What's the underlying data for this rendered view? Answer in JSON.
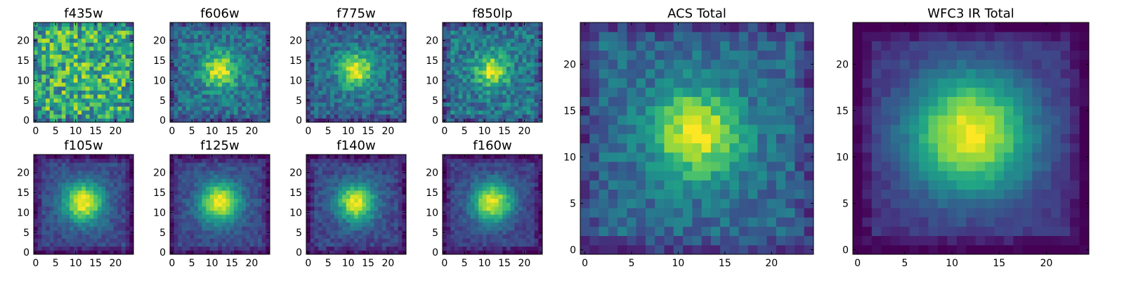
{
  "chart_data": {
    "type": "heatmap",
    "colormap": "viridis",
    "grid_size": 25,
    "axis_range": [
      0,
      24
    ],
    "panels": [
      {
        "title": "f435w",
        "xticks": [
          "0",
          "5",
          "10",
          "15",
          "20"
        ],
        "yticks": [
          "0",
          "5",
          "10",
          "15",
          "20"
        ],
        "peak": 0.05,
        "noise": 0.3,
        "base": 0.62,
        "sigma": 3.2,
        "seed": 11
      },
      {
        "title": "f606w",
        "xticks": [
          "0",
          "5",
          "10",
          "15",
          "20"
        ],
        "yticks": [
          "0",
          "5",
          "10",
          "15",
          "20"
        ],
        "peak": 0.6,
        "noise": 0.16,
        "base": 0.38,
        "sigma": 3.0,
        "seed": 23
      },
      {
        "title": "f775w",
        "xticks": [
          "0",
          "5",
          "10",
          "15",
          "20"
        ],
        "yticks": [
          "0",
          "5",
          "10",
          "15",
          "20"
        ],
        "peak": 0.62,
        "noise": 0.15,
        "base": 0.35,
        "sigma": 3.0,
        "seed": 37
      },
      {
        "title": "f850lp",
        "xticks": [
          "0",
          "5",
          "10",
          "15",
          "20"
        ],
        "yticks": [
          "0",
          "5",
          "10",
          "15",
          "20"
        ],
        "peak": 0.55,
        "noise": 0.18,
        "base": 0.4,
        "sigma": 2.8,
        "seed": 41
      },
      {
        "title": "f105w",
        "xticks": [
          "0",
          "5",
          "10",
          "15",
          "20"
        ],
        "yticks": [
          "0",
          "5",
          "10",
          "15",
          "20"
        ],
        "peak": 0.78,
        "noise": 0.08,
        "base": 0.22,
        "sigma": 3.6,
        "seed": 53
      },
      {
        "title": "f125w",
        "xticks": [
          "0",
          "5",
          "10",
          "15",
          "20"
        ],
        "yticks": [
          "0",
          "5",
          "10",
          "15",
          "20"
        ],
        "peak": 0.78,
        "noise": 0.08,
        "base": 0.22,
        "sigma": 3.6,
        "seed": 61
      },
      {
        "title": "f140w",
        "xticks": [
          "0",
          "5",
          "10",
          "15",
          "20"
        ],
        "yticks": [
          "0",
          "5",
          "10",
          "15",
          "20"
        ],
        "peak": 0.76,
        "noise": 0.09,
        "base": 0.22,
        "sigma": 3.4,
        "seed": 71
      },
      {
        "title": "f160w",
        "xticks": [
          "0",
          "5",
          "10",
          "15",
          "20"
        ],
        "yticks": [
          "0",
          "5",
          "10",
          "15",
          "20"
        ],
        "peak": 0.78,
        "noise": 0.08,
        "base": 0.2,
        "sigma": 3.6,
        "seed": 83
      },
      {
        "title": "ACS Total",
        "xticks": [
          "0",
          "5",
          "10",
          "15",
          "20"
        ],
        "yticks": [
          "0",
          "5",
          "10",
          "15",
          "20"
        ],
        "peak": 0.66,
        "noise": 0.12,
        "base": 0.34,
        "sigma": 3.3,
        "seed": 97
      },
      {
        "title": "WFC3 IR Total",
        "xticks": [
          "0",
          "5",
          "10",
          "15",
          "20"
        ],
        "yticks": [
          "0",
          "5",
          "10",
          "15",
          "20"
        ],
        "peak": 0.85,
        "noise": 0.05,
        "base": 0.14,
        "sigma": 4.6,
        "seed": 101
      }
    ],
    "source_center": [
      12,
      12.5
    ],
    "value_range": [
      0,
      1
    ],
    "grid": false,
    "legend": "none"
  }
}
